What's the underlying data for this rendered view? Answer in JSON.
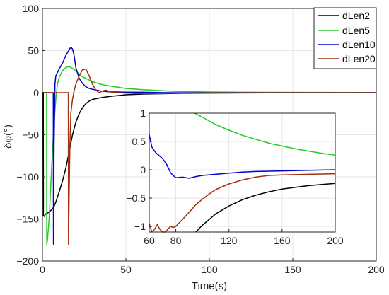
{
  "chart_data": [
    {
      "type": "line",
      "title": "",
      "xlabel": "Time(s)",
      "ylabel": "δφ(°)",
      "xlim": [
        0,
        200
      ],
      "ylim": [
        -200,
        100
      ],
      "xticks": [
        0,
        50,
        100,
        150,
        200
      ],
      "yticks": [
        -200,
        -150,
        -100,
        -50,
        0,
        50,
        100
      ],
      "grid": true,
      "legend_position": "top-right",
      "series": [
        {
          "name": "dLen2",
          "color": "#000000",
          "x": [
            0,
            0.5,
            0.6,
            1,
            2,
            3,
            4,
            5,
            6,
            7,
            8,
            9,
            10,
            12,
            14,
            16,
            18,
            20,
            22,
            24,
            26,
            28,
            30,
            35,
            40,
            50,
            60,
            80,
            100,
            120,
            150,
            200
          ],
          "y": [
            0,
            0,
            -146,
            -147,
            -144,
            -143,
            -142,
            -140,
            -138,
            -135,
            -130,
            -124,
            -118,
            -105,
            -90,
            -70,
            -50,
            -35,
            -25,
            -18,
            -13,
            -10,
            -8,
            -6,
            -4.5,
            -2.5,
            -1.7,
            -0.9,
            -0.5,
            -0.3,
            -0.15,
            -0.1
          ]
        },
        {
          "name": "dLen5",
          "color": "#22cc22",
          "x": [
            0,
            2.5,
            2.6,
            3,
            4,
            5,
            6,
            7,
            8,
            9,
            10,
            12,
            14,
            16,
            18,
            20,
            22,
            24,
            26,
            28,
            30,
            35,
            40,
            50,
            60,
            80,
            100,
            120,
            160,
            200
          ],
          "y": [
            0,
            0,
            -180,
            -175,
            -150,
            -110,
            -70,
            -35,
            -8,
            10,
            18,
            26,
            30,
            31,
            29,
            26,
            22,
            19,
            17,
            15,
            13,
            10,
            8,
            5,
            3.5,
            1.5,
            0.8,
            0.5,
            0.3,
            0.2
          ]
        },
        {
          "name": "dLen10",
          "color": "#0000cc",
          "x": [
            0,
            6.5,
            6.6,
            7,
            7.5,
            8,
            10,
            12,
            14,
            16,
            17,
            18,
            19,
            20,
            22,
            24,
            26,
            28,
            30,
            35,
            40,
            50,
            60,
            70,
            80,
            100,
            120,
            200
          ],
          "y": [
            0,
            0,
            -180,
            -60,
            10,
            20,
            28,
            35,
            44,
            51,
            54,
            52,
            44,
            30,
            17,
            11,
            7,
            5,
            4,
            2,
            1,
            0.6,
            0.5,
            0.1,
            -0.1,
            -0.05,
            0,
            0
          ]
        },
        {
          "name": "dLen20",
          "color": "#a03010",
          "x": [
            0,
            15.5,
            15.6,
            16,
            16.5,
            17,
            18,
            19,
            20,
            22,
            24,
            26,
            28,
            30,
            32,
            34,
            36,
            38,
            40,
            45,
            50,
            60,
            70,
            80,
            100,
            120,
            150,
            200
          ],
          "y": [
            0,
            0,
            -180,
            -120,
            -60,
            -25,
            -8,
            2,
            10,
            20,
            27,
            28,
            20,
            10,
            3,
            0,
            2,
            3,
            1,
            0,
            -0.5,
            -1.05,
            -1.05,
            -0.7,
            -0.3,
            -0.15,
            -0.08,
            -0.06
          ]
        }
      ]
    },
    {
      "type": "line",
      "title": "",
      "xlabel": "",
      "ylabel": "",
      "xlim": [
        60,
        200
      ],
      "ylim": [
        -1.1,
        1
      ],
      "xticks": [
        60,
        80,
        120,
        160,
        200
      ],
      "yticks": [
        -1,
        -0.5,
        0,
        0.5,
        1
      ],
      "grid": true,
      "series": [
        {
          "name": "dLen2",
          "color": "#000000",
          "x": [
            95,
            100,
            110,
            120,
            130,
            140,
            150,
            160,
            170,
            180,
            190,
            200
          ],
          "y": [
            -1.1,
            -0.98,
            -0.78,
            -0.64,
            -0.53,
            -0.45,
            -0.39,
            -0.34,
            -0.31,
            -0.28,
            -0.26,
            -0.24
          ]
        },
        {
          "name": "dLen5",
          "color": "#22cc22",
          "x": [
            94,
            100,
            110,
            120,
            130,
            140,
            150,
            160,
            170,
            180,
            190,
            200
          ],
          "y": [
            1,
            0.93,
            0.8,
            0.7,
            0.61,
            0.54,
            0.47,
            0.42,
            0.37,
            0.33,
            0.29,
            0.26
          ]
        },
        {
          "name": "dLen10",
          "color": "#0000cc",
          "x": [
            60,
            62,
            65,
            70,
            73,
            76,
            78,
            80,
            85,
            90,
            95,
            100,
            110,
            120,
            130,
            140,
            160,
            180,
            200
          ],
          "y": [
            0.62,
            0.4,
            0.3,
            0.2,
            0.1,
            -0.05,
            -0.1,
            -0.14,
            -0.13,
            -0.15,
            -0.12,
            -0.1,
            -0.08,
            -0.06,
            -0.04,
            -0.03,
            -0.02,
            -0.01,
            0
          ]
        },
        {
          "name": "dLen20",
          "color": "#a03010",
          "x": [
            60,
            62,
            64,
            66,
            68,
            70,
            72,
            74,
            76,
            78,
            80,
            82,
            85,
            90,
            95,
            100,
            105,
            110,
            120,
            130,
            140,
            150,
            160,
            180,
            200
          ],
          "y": [
            -0.95,
            -1.1,
            -1.05,
            -0.97,
            -1.05,
            -1.1,
            -1.13,
            -1.05,
            -1.0,
            -1.02,
            -1.0,
            -0.95,
            -0.88,
            -0.75,
            -0.62,
            -0.52,
            -0.43,
            -0.35,
            -0.25,
            -0.18,
            -0.13,
            -0.1,
            -0.09,
            -0.08,
            -0.07
          ]
        }
      ]
    }
  ]
}
